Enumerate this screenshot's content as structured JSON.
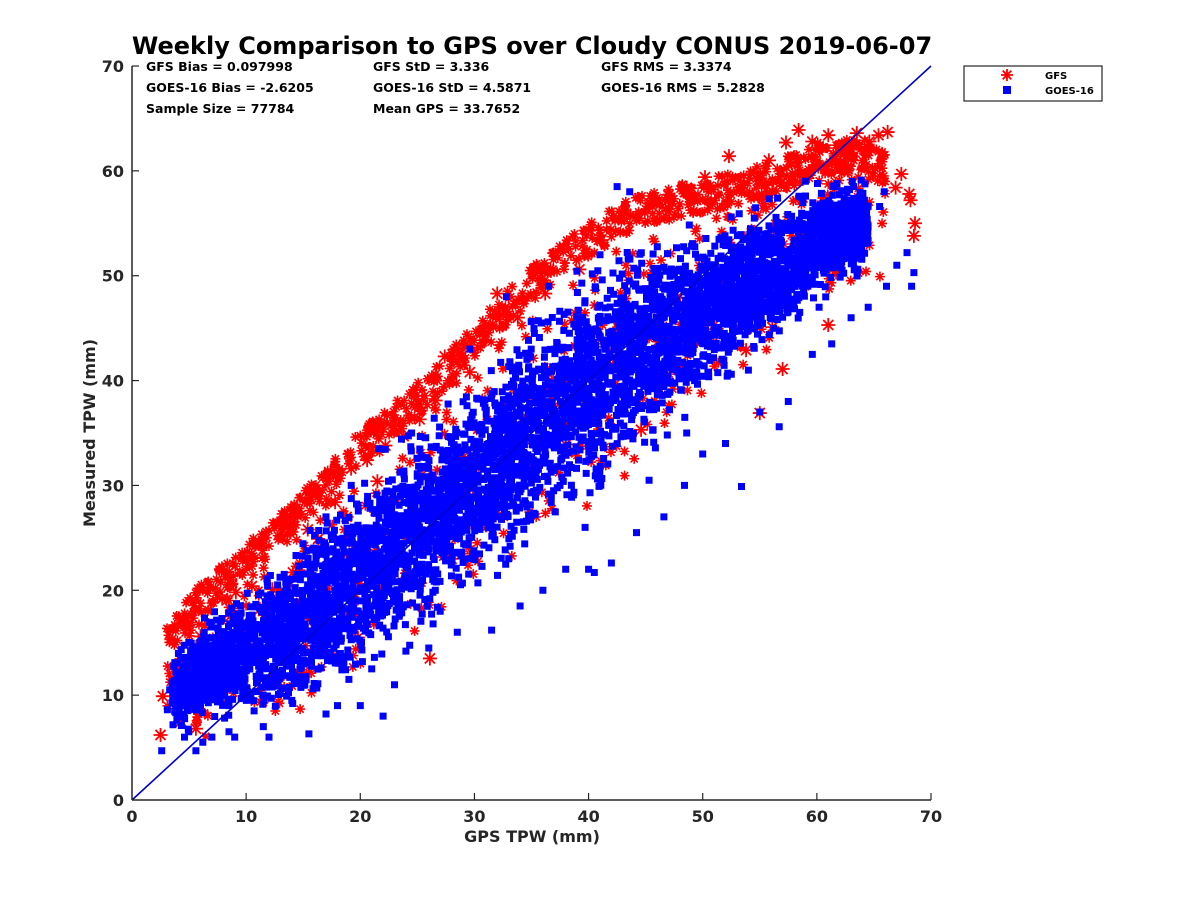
{
  "chart_data": {
    "type": "scatter",
    "title": "Weekly Comparison to GPS over Cloudy CONUS 2019-06-07",
    "xlabel": "GPS TPW (mm)",
    "ylabel": "Measured TPW (mm)",
    "xlim": [
      0,
      70
    ],
    "ylim": [
      0,
      70
    ],
    "xticks": [
      "0",
      "10",
      "20",
      "30",
      "40",
      "50",
      "60",
      "70"
    ],
    "yticks": [
      "0",
      "10",
      "20",
      "30",
      "40",
      "50",
      "60",
      "70"
    ],
    "grid": false,
    "legend_position": "outside-top-right",
    "stats": [
      [
        "GFS Bias = 0.097998",
        "GFS StD = 3.336",
        "GFS RMS = 3.3374"
      ],
      [
        "GOES-16 Bias = -2.6205",
        "GOES-16 StD = 4.5871",
        "GOES-16 RMS = 5.2828"
      ],
      [
        "Sample Size = 77784",
        "Mean GPS = 33.7652",
        ""
      ]
    ],
    "reference_line": {
      "from": [
        0,
        0
      ],
      "to": [
        70,
        70
      ],
      "color": "#0000cc"
    },
    "series": [
      {
        "name": "GFS",
        "marker": "asterisk",
        "color": "#ff0000",
        "points": [
          [
            2.5,
            6.2
          ],
          [
            2.7,
            9.9
          ],
          [
            3.9,
            12.5
          ],
          [
            4.3,
            7.5
          ],
          [
            5.0,
            10.0
          ],
          [
            5.6,
            6.8
          ],
          [
            6.0,
            15.6
          ],
          [
            6.3,
            12.0
          ],
          [
            7.3,
            14.9
          ],
          [
            7.9,
            19.2
          ],
          [
            8.6,
            17.5
          ],
          [
            9.1,
            19.8
          ],
          [
            9.6,
            16.8
          ],
          [
            10.5,
            20.4
          ],
          [
            11.2,
            18.2
          ],
          [
            12.3,
            20.1
          ],
          [
            14.1,
            21.7
          ],
          [
            15.4,
            25.8
          ],
          [
            16.3,
            24.9
          ],
          [
            17.8,
            28.4
          ],
          [
            18.8,
            27.0
          ],
          [
            19.2,
            31.6
          ],
          [
            20.6,
            32.4
          ],
          [
            21.5,
            30.4
          ],
          [
            22.2,
            33.8
          ],
          [
            23.8,
            34.7
          ],
          [
            25.2,
            36.3
          ],
          [
            26.6,
            38.1
          ],
          [
            27.4,
            42.3
          ],
          [
            28.5,
            43.0
          ],
          [
            29.6,
            40.8
          ],
          [
            32.0,
            48.3
          ],
          [
            33.8,
            46.0
          ],
          [
            36.2,
            48.3
          ],
          [
            39.2,
            50.6
          ],
          [
            41.1,
            53.4
          ],
          [
            43.3,
            55.9
          ],
          [
            45.6,
            56.6
          ],
          [
            47.0,
            57.7
          ],
          [
            48.6,
            58.4
          ],
          [
            50.2,
            59.4
          ],
          [
            52.3,
            61.4
          ],
          [
            53.6,
            58.6
          ],
          [
            55.8,
            61.0
          ],
          [
            57.3,
            62.7
          ],
          [
            58.4,
            63.9
          ],
          [
            59.6,
            62.8
          ],
          [
            61.0,
            63.4
          ],
          [
            62.1,
            60.9
          ],
          [
            63.5,
            63.6
          ],
          [
            64.6,
            62.8
          ],
          [
            65.4,
            63.4
          ],
          [
            66.2,
            63.7
          ],
          [
            66.9,
            58.4
          ],
          [
            67.4,
            59.7
          ],
          [
            68.1,
            57.8
          ],
          [
            68.2,
            57.2
          ],
          [
            68.6,
            55.0
          ],
          [
            68.5,
            53.8
          ],
          [
            26.1,
            13.5
          ],
          [
            28.0,
            23.0
          ],
          [
            35.2,
            31.9
          ],
          [
            40.0,
            37.9
          ],
          [
            44.6,
            35.3
          ],
          [
            48.3,
            41.3
          ],
          [
            51.0,
            45.3
          ],
          [
            53.8,
            42.9
          ],
          [
            56.1,
            45.1
          ],
          [
            55.0,
            36.9
          ],
          [
            61.0,
            45.3
          ],
          [
            57.0,
            41.1
          ],
          [
            24.2,
            21.4
          ],
          [
            19.8,
            15.5
          ],
          [
            32.5,
            27.1
          ],
          [
            38.0,
            33.9
          ]
        ]
      },
      {
        "name": "GOES-16",
        "marker": "square",
        "color": "#0000ff",
        "core": [
          [
            3,
            5.0,
            15.5
          ],
          [
            8,
            6.0,
            21.0
          ],
          [
            14,
            6.5,
            26.5
          ],
          [
            20,
            10.0,
            33.5
          ],
          [
            26,
            15.0,
            39.0
          ],
          [
            32,
            19.5,
            46.0
          ],
          [
            38,
            25.0,
            52.0
          ],
          [
            44,
            30.0,
            56.0
          ],
          [
            50,
            36.5,
            57.5
          ],
          [
            56,
            42.0,
            59.0
          ],
          [
            60,
            46.0,
            61.0
          ],
          [
            64,
            49.0,
            61.5
          ],
          [
            66,
            50.0,
            60.0
          ]
        ],
        "outliers": [
          [
            2.6,
            4.7
          ],
          [
            3.1,
            8.6
          ],
          [
            5.6,
            4.7
          ],
          [
            7.0,
            6.0
          ],
          [
            9.0,
            6.0
          ],
          [
            12.0,
            6.0
          ],
          [
            15.5,
            6.3
          ],
          [
            17.0,
            8.2
          ],
          [
            20.0,
            9.0
          ],
          [
            22.0,
            8.0
          ],
          [
            23.0,
            11.0
          ],
          [
            26.0,
            14.5
          ],
          [
            28.5,
            16.0
          ],
          [
            31.5,
            16.2
          ],
          [
            34.0,
            18.5
          ],
          [
            36.0,
            20.0
          ],
          [
            38.0,
            22.0
          ],
          [
            40.0,
            22.0
          ],
          [
            40.5,
            21.7
          ],
          [
            42.0,
            22.6
          ],
          [
            44.2,
            25.5
          ],
          [
            46.6,
            27.0
          ],
          [
            48.4,
            30.0
          ],
          [
            50.0,
            33.0
          ],
          [
            52.0,
            34.0
          ],
          [
            53.4,
            29.9
          ],
          [
            55.0,
            37.0
          ],
          [
            56.7,
            35.6
          ],
          [
            57.5,
            38.0
          ],
          [
            59.6,
            42.5
          ],
          [
            61.3,
            43.5
          ],
          [
            63.0,
            46.0
          ],
          [
            64.5,
            47.0
          ],
          [
            66.1,
            49.0
          ],
          [
            67.0,
            51.0
          ],
          [
            68.3,
            49.0
          ],
          [
            68.5,
            50.3
          ],
          [
            67.9,
            52.2
          ],
          [
            65.5,
            56.6
          ],
          [
            61.5,
            58.5
          ],
          [
            59.0,
            59.0
          ],
          [
            42.5,
            58.5
          ],
          [
            43.6,
            58.0
          ],
          [
            21.6,
            33.5
          ],
          [
            19.2,
            30.0
          ],
          [
            15.6,
            25.7
          ],
          [
            11.8,
            18.6
          ],
          [
            9.6,
            16.4
          ],
          [
            6.7,
            14.0
          ],
          [
            3.3,
            10.5
          ],
          [
            4.6,
            6.0
          ],
          [
            29.6,
            43.0
          ],
          [
            32.8,
            48.0
          ],
          [
            36.5,
            49.0
          ],
          [
            41.0,
            52.0
          ],
          [
            24.5,
            35.0
          ],
          [
            17.0,
            27.0
          ],
          [
            58.5,
            46.5
          ],
          [
            62.0,
            51.0
          ],
          [
            60.2,
            47.0
          ],
          [
            52.5,
            40.6
          ],
          [
            48.6,
            35.0
          ],
          [
            45.3,
            30.5
          ],
          [
            39.7,
            26.0
          ],
          [
            33.0,
            23.0
          ],
          [
            30.3,
            20.7
          ],
          [
            27.0,
            18.0
          ],
          [
            24.0,
            14.2
          ],
          [
            21.0,
            12.5
          ],
          [
            19.0,
            11.5
          ],
          [
            18.0,
            9.0
          ],
          [
            14.0,
            9.5
          ],
          [
            11.5,
            7.0
          ],
          [
            8.5,
            6.5
          ],
          [
            6.2,
            5.5
          ],
          [
            10.7,
            8.5
          ],
          [
            51.1,
            47.8
          ],
          [
            56.3,
            51.0
          ],
          [
            63.4,
            54.0
          ],
          [
            65.9,
            58.0
          ],
          [
            54.0,
            41.0
          ],
          [
            46.0,
            40.0
          ],
          [
            37.5,
            30.0
          ]
        ]
      }
    ]
  }
}
